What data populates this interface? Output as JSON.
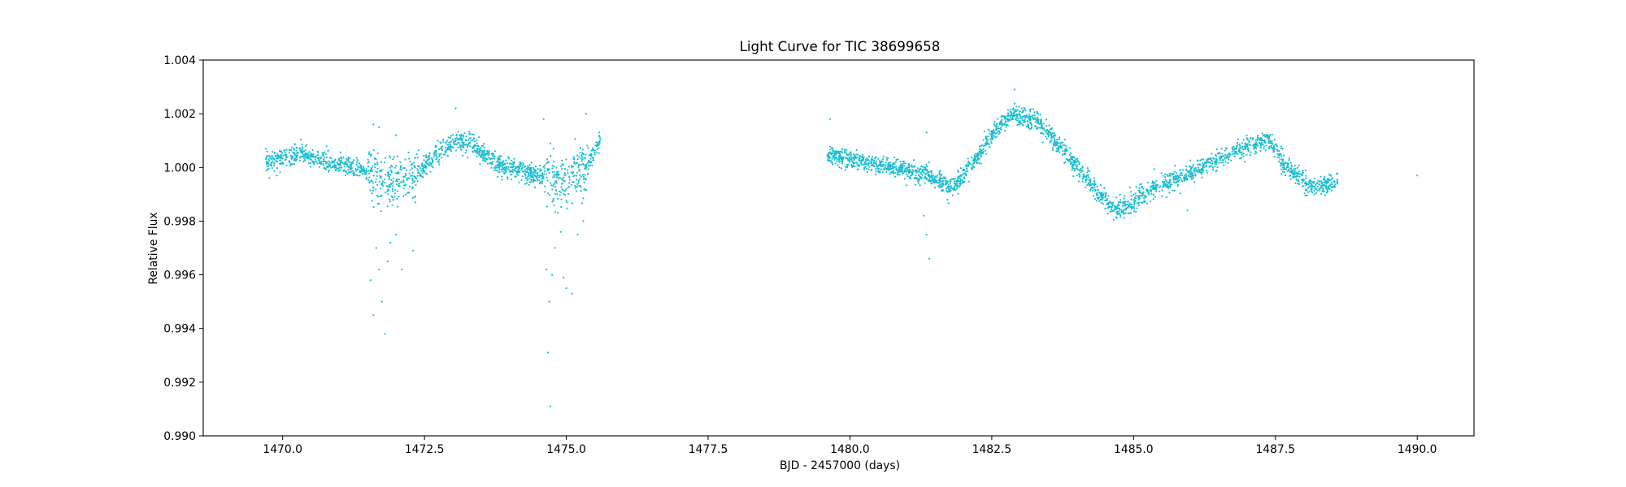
{
  "chart_data": {
    "type": "scatter",
    "title": "Light Curve for TIC 38699658",
    "xlabel": "BJD - 2457000 (days)",
    "ylabel": "Relative Flux",
    "xlim": [
      1468.6,
      1491.0
    ],
    "ylim": [
      0.99,
      1.004
    ],
    "xticks": [
      1470.0,
      1472.5,
      1475.0,
      1477.5,
      1480.0,
      1482.5,
      1485.0,
      1487.5,
      1490.0
    ],
    "xtick_labels": [
      "1470.0",
      "1472.5",
      "1475.0",
      "1477.5",
      "1480.0",
      "1482.5",
      "1485.0",
      "1487.5",
      "1490.0"
    ],
    "yticks": [
      0.99,
      0.992,
      0.994,
      0.996,
      0.998,
      1.0,
      1.002,
      1.004
    ],
    "ytick_labels": [
      "0.990",
      "0.992",
      "0.994",
      "0.996",
      "0.998",
      "1.000",
      "1.002",
      "1.004"
    ],
    "grid": false,
    "marker_color": "#17becf",
    "series": [
      {
        "segments": [
          {
            "x_range": [
              1469.7,
              1475.6
            ],
            "trend": [
              [
                1469.7,
                1.0002
              ],
              [
                1470.3,
                1.0005
              ],
              [
                1470.8,
                1.0002
              ],
              [
                1471.4,
                0.9999
              ],
              [
                1471.9,
                0.9993
              ],
              [
                1472.3,
                0.9996
              ],
              [
                1472.7,
                1.0005
              ],
              [
                1473.1,
                1.001
              ],
              [
                1473.4,
                1.0008
              ],
              [
                1473.8,
                1.0001
              ],
              [
                1474.3,
                0.9998
              ],
              [
                1474.7,
                0.9996
              ],
              [
                1475.0,
                0.9995
              ],
              [
                1475.3,
                0.9999
              ],
              [
                1475.6,
                1.001
              ]
            ],
            "scatter": 0.00018
          },
          {
            "x_range": [
              1479.6,
              1488.6
            ],
            "trend": [
              [
                1479.6,
                1.0005
              ],
              [
                1480.2,
                1.0002
              ],
              [
                1480.8,
                1.0
              ],
              [
                1481.4,
                0.9997
              ],
              [
                1481.8,
                0.9992
              ],
              [
                1482.2,
                1.0002
              ],
              [
                1482.6,
                1.0015
              ],
              [
                1482.9,
                1.002
              ],
              [
                1483.3,
                1.0017
              ],
              [
                1483.7,
                1.0008
              ],
              [
                1484.2,
                0.9995
              ],
              [
                1484.6,
                0.9985
              ],
              [
                1484.8,
                0.9984
              ],
              [
                1485.3,
                0.9992
              ],
              [
                1485.9,
                0.9997
              ],
              [
                1486.5,
                1.0003
              ],
              [
                1487.0,
                1.0008
              ],
              [
                1487.4,
                1.001
              ],
              [
                1487.7,
                1.0
              ],
              [
                1488.1,
                0.9993
              ],
              [
                1488.6,
                0.9994
              ]
            ],
            "scatter": 0.00018
          }
        ],
        "outliers": [
          [
            1471.55,
            0.9958
          ],
          [
            1471.6,
            0.9945
          ],
          [
            1471.65,
            0.997
          ],
          [
            1471.7,
            0.9962
          ],
          [
            1471.75,
            0.995
          ],
          [
            1471.8,
            0.9938
          ],
          [
            1471.85,
            0.9965
          ],
          [
            1471.9,
            0.9972
          ],
          [
            1472.0,
            0.9975
          ],
          [
            1472.1,
            0.9962
          ],
          [
            1471.6,
            1.0016
          ],
          [
            1471.7,
            1.0015
          ],
          [
            1472.0,
            1.0012
          ],
          [
            1472.3,
            0.9969
          ],
          [
            1473.05,
            1.0022
          ],
          [
            1474.6,
            1.0018
          ],
          [
            1474.65,
            0.9962
          ],
          [
            1474.68,
            0.9931
          ],
          [
            1474.7,
            0.995
          ],
          [
            1474.72,
            0.9911
          ],
          [
            1474.75,
            0.996
          ],
          [
            1474.8,
            0.997
          ],
          [
            1474.9,
            0.9976
          ],
          [
            1474.95,
            0.9959
          ],
          [
            1475.0,
            0.9955
          ],
          [
            1475.1,
            0.9953
          ],
          [
            1475.2,
            0.9975
          ],
          [
            1475.3,
            0.998
          ],
          [
            1475.35,
            1.002
          ],
          [
            1479.65,
            1.0018
          ],
          [
            1481.3,
            0.9982
          ],
          [
            1481.35,
            0.9975
          ],
          [
            1481.4,
            0.9966
          ],
          [
            1481.35,
            1.0013
          ],
          [
            1482.9,
            1.0029
          ],
          [
            1485.95,
            0.9984
          ],
          [
            1490.0,
            0.9997
          ]
        ]
      }
    ]
  }
}
